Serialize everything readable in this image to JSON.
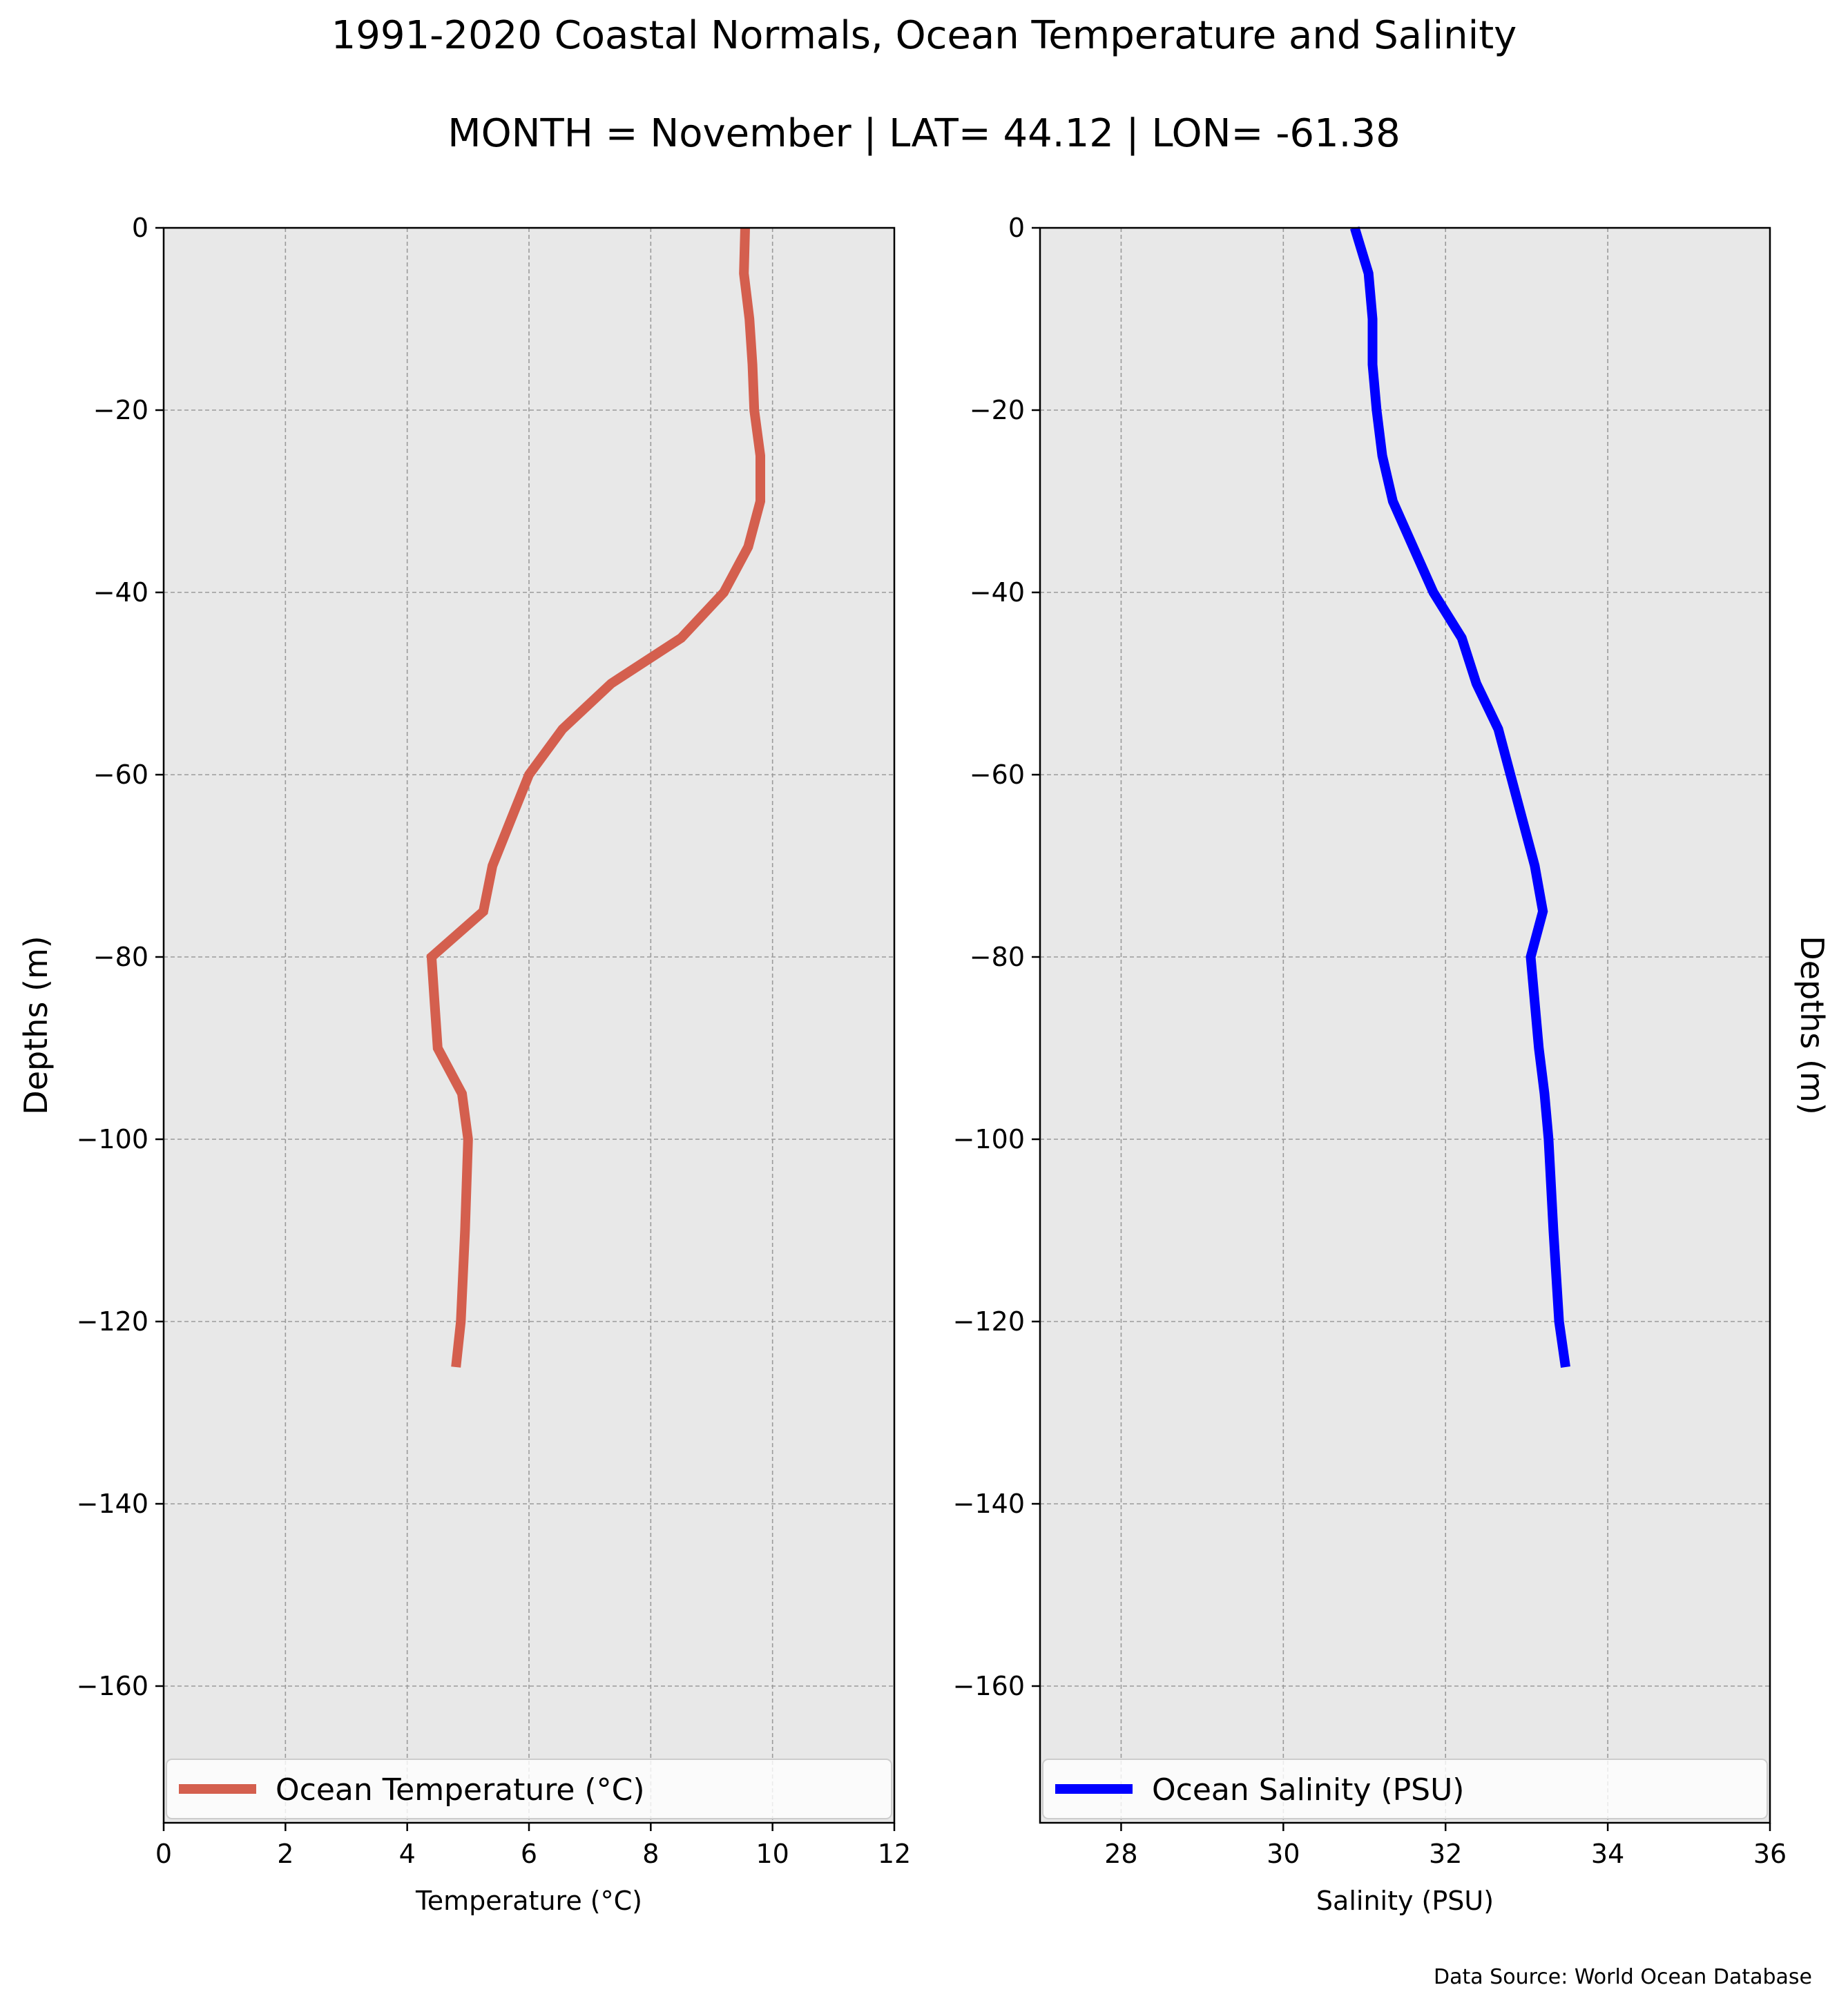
{
  "figure": {
    "title": "1991-2020 Coastal Normals, Ocean Temperature and Salinity",
    "subtitle": "MONTH = November | LAT= 44.12 | LON= -61.38",
    "source": "Data Source: World Ocean Database"
  },
  "chart_data": [
    {
      "type": "line",
      "xlabel": "Temperature ($^\\circ$C)",
      "ylabel": "Depths (m)",
      "xlim": [
        0,
        12
      ],
      "ylim": [
        -175,
        0
      ],
      "x_ticks": [
        0,
        2,
        4,
        6,
        8,
        10,
        12
      ],
      "x_tick_labels": [
        "0",
        "2",
        "4",
        "6",
        "8",
        "10",
        "12"
      ],
      "y_ticks": [
        0,
        -20,
        -40,
        -60,
        -80,
        -100,
        -120,
        -140,
        -160
      ],
      "y_tick_labels": [
        "0",
        "−20",
        "−40",
        "−60",
        "−80",
        "−100",
        "−120",
        "−140",
        "−160"
      ],
      "grid": true,
      "legend_position": "bottom",
      "series": [
        {
          "name": "Ocean Temperature ($^\\circ$C)",
          "color": "#d45f4e",
          "points": [
            [
              9.55,
              0
            ],
            [
              9.53,
              -5
            ],
            [
              9.62,
              -10
            ],
            [
              9.67,
              -15
            ],
            [
              9.7,
              -20
            ],
            [
              9.8,
              -25
            ],
            [
              9.8,
              -30
            ],
            [
              9.6,
              -35
            ],
            [
              9.2,
              -40
            ],
            [
              8.5,
              -45
            ],
            [
              7.35,
              -50
            ],
            [
              6.55,
              -55
            ],
            [
              6.0,
              -60
            ],
            [
              5.7,
              -65
            ],
            [
              5.4,
              -70
            ],
            [
              5.25,
              -75
            ],
            [
              4.4,
              -80
            ],
            [
              4.45,
              -85
            ],
            [
              4.5,
              -90
            ],
            [
              4.9,
              -95
            ],
            [
              5.0,
              -100
            ],
            [
              4.95,
              -110
            ],
            [
              4.88,
              -120
            ],
            [
              4.8,
              -125
            ]
          ]
        }
      ]
    },
    {
      "type": "line",
      "xlabel": "Salinity (PSU)",
      "ylabel": "Depths (m)",
      "xlim": [
        27,
        36
      ],
      "ylim": [
        -175,
        0
      ],
      "x_ticks": [
        28,
        30,
        32,
        34,
        36
      ],
      "x_tick_labels": [
        "28",
        "30",
        "32",
        "34",
        "36"
      ],
      "y_ticks": [
        0,
        -20,
        -40,
        -60,
        -80,
        -100,
        -120,
        -140,
        -160
      ],
      "y_tick_labels": [
        "0",
        "−20",
        "−40",
        "−60",
        "−80",
        "−100",
        "−120",
        "−140",
        "−160"
      ],
      "grid": true,
      "legend_position": "bottom",
      "series": [
        {
          "name": "Ocean Salinity (PSU)",
          "color": "#0000ff",
          "points": [
            [
              30.88,
              0
            ],
            [
              31.05,
              -5
            ],
            [
              31.1,
              -10
            ],
            [
              31.1,
              -15
            ],
            [
              31.15,
              -20
            ],
            [
              31.22,
              -25
            ],
            [
              31.35,
              -30
            ],
            [
              31.6,
              -35
            ],
            [
              31.85,
              -40
            ],
            [
              32.2,
              -45
            ],
            [
              32.38,
              -50
            ],
            [
              32.65,
              -55
            ],
            [
              32.8,
              -60
            ],
            [
              32.95,
              -65
            ],
            [
              33.1,
              -70
            ],
            [
              33.2,
              -75
            ],
            [
              33.05,
              -80
            ],
            [
              33.1,
              -85
            ],
            [
              33.15,
              -90
            ],
            [
              33.22,
              -95
            ],
            [
              33.27,
              -100
            ],
            [
              33.33,
              -110
            ],
            [
              33.4,
              -120
            ],
            [
              33.48,
              -125
            ]
          ]
        }
      ]
    }
  ]
}
